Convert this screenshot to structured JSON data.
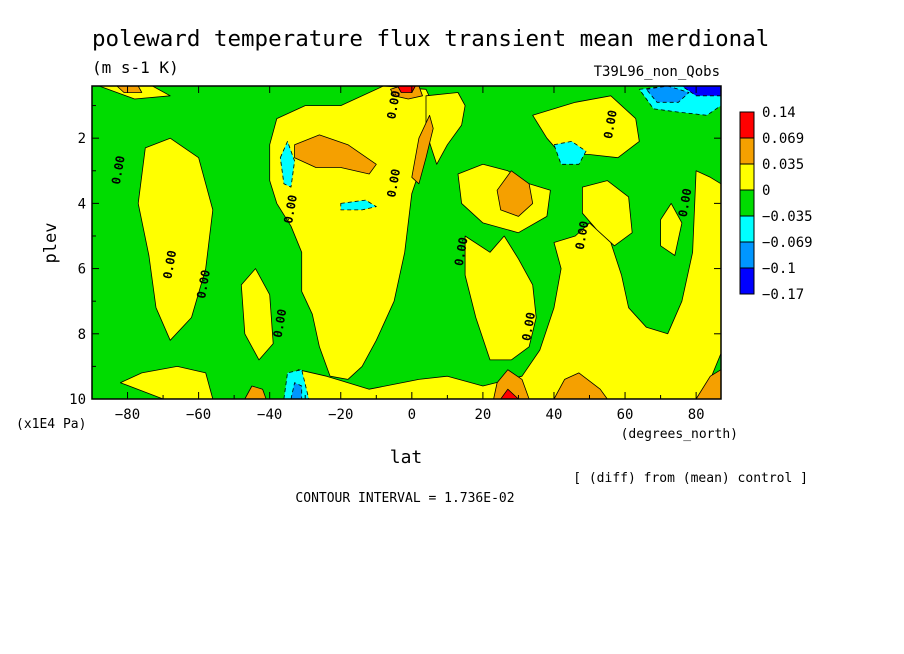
{
  "chart_data": {
    "type": "heatmap",
    "title": "poleward temperature flux transient mean merdional",
    "units": "(m s-1 K)",
    "run_label": "T39L96_non_Qobs",
    "xlabel": "lat",
    "xunits": "(degrees_north)",
    "ylabel": "plev",
    "yunits": "(x1E4 Pa)",
    "xlim": [
      -90,
      87
    ],
    "ylim": [
      10,
      0.4
    ],
    "x_ticks": [
      -80,
      -60,
      -40,
      -20,
      0,
      20,
      40,
      60,
      80
    ],
    "y_ticks": [
      2,
      4,
      6,
      8,
      10
    ],
    "colorbar": {
      "levels": [
        "0.14",
        "0.069",
        "0.035",
        "0",
        "-0.035",
        "-0.069",
        "-0.1",
        "-0.17"
      ],
      "colors": [
        "#ff0000",
        "#f5a000",
        "#ffff00",
        "#00dc00",
        "#00ffff",
        "#0096ff",
        "#0000ff"
      ]
    },
    "contour_label": "0.00",
    "footnote": "[ (diff) from (mean) control ]",
    "contour_interval": "CONTOUR INTERVAL = 1.736E-02",
    "regions": [
      {
        "level": "0.035",
        "points": [
          [
            -82,
            9.5
          ],
          [
            -70,
            10
          ],
          [
            -56,
            10
          ],
          [
            -58,
            9.2
          ],
          [
            -66,
            9.0
          ],
          [
            -76,
            9.2
          ]
        ]
      },
      {
        "level": "0.035",
        "points": [
          [
            -75,
            2.3
          ],
          [
            -68,
            2.0
          ],
          [
            -60,
            2.6
          ],
          [
            -56,
            4.2
          ],
          [
            -58,
            6.0
          ],
          [
            -62,
            7.5
          ],
          [
            -68,
            8.2
          ],
          [
            -72,
            7.2
          ],
          [
            -74,
            5.6
          ],
          [
            -77,
            4.0
          ]
        ]
      },
      {
        "level": "0.035",
        "points": [
          [
            -48,
            6.5
          ],
          [
            -44,
            6.0
          ],
          [
            -40,
            6.8
          ],
          [
            -39,
            8.3
          ],
          [
            -43,
            8.8
          ],
          [
            -47,
            8.0
          ]
        ]
      },
      {
        "level": "0.035",
        "points": [
          [
            -38,
            1.4
          ],
          [
            -30,
            1.0
          ],
          [
            -20,
            1.0
          ],
          [
            -8,
            0.4
          ],
          [
            4,
            0.5
          ],
          [
            7,
            1.2
          ],
          [
            4,
            2.4
          ],
          [
            0,
            3.7
          ],
          [
            -2,
            5.5
          ],
          [
            -5,
            7.0
          ],
          [
            -10,
            8.2
          ],
          [
            -14,
            9.0
          ],
          [
            -18,
            9.4
          ],
          [
            -23,
            9.3
          ],
          [
            -26,
            8.4
          ],
          [
            -28,
            7.4
          ],
          [
            -31,
            6.7
          ],
          [
            -31,
            5.5
          ],
          [
            -34,
            4.7
          ],
          [
            -38,
            4.0
          ],
          [
            -40,
            3.3
          ],
          [
            -40,
            2.2
          ]
        ]
      },
      {
        "level": "0.035",
        "points": [
          [
            4,
            0.7
          ],
          [
            13,
            0.6
          ],
          [
            15,
            1.0
          ],
          [
            14,
            1.6
          ],
          [
            10,
            2.2
          ],
          [
            7,
            2.8
          ],
          [
            4,
            1.8
          ]
        ]
      },
      {
        "level": "0.035",
        "points": [
          [
            -32,
            9.1
          ],
          [
            -24,
            9.3
          ],
          [
            -12,
            9.7
          ],
          [
            2,
            9.4
          ],
          [
            10,
            9.3
          ],
          [
            20,
            9.6
          ],
          [
            31,
            9.3
          ],
          [
            36,
            8.5
          ],
          [
            40,
            7.2
          ],
          [
            42,
            6.0
          ],
          [
            40,
            5.2
          ],
          [
            46,
            5.0
          ],
          [
            50,
            4.6
          ],
          [
            56,
            5.2
          ],
          [
            59,
            6.2
          ],
          [
            61,
            7.2
          ],
          [
            66,
            7.8
          ],
          [
            72,
            8.0
          ],
          [
            76,
            7.0
          ],
          [
            79,
            5.5
          ],
          [
            80,
            3.0
          ],
          [
            84,
            3.2
          ],
          [
            87,
            3.4
          ],
          [
            87,
            8.6
          ],
          [
            84,
            9.4
          ],
          [
            80,
            10
          ],
          [
            -32,
            10
          ]
        ]
      },
      {
        "level": "0.035",
        "points": [
          [
            15,
            5.0
          ],
          [
            22,
            5.5
          ],
          [
            26,
            5.0
          ],
          [
            30,
            5.7
          ],
          [
            34,
            6.5
          ],
          [
            35,
            7.5
          ],
          [
            33,
            8.4
          ],
          [
            28,
            8.8
          ],
          [
            22,
            8.8
          ],
          [
            18,
            7.5
          ],
          [
            15,
            6.2
          ]
        ]
      },
      {
        "level": "0.035",
        "points": [
          [
            13,
            3.1
          ],
          [
            20,
            2.8
          ],
          [
            27,
            3.0
          ],
          [
            33,
            3.4
          ],
          [
            39,
            3.6
          ],
          [
            38,
            4.4
          ],
          [
            30,
            4.9
          ],
          [
            20,
            4.6
          ],
          [
            14,
            4.0
          ]
        ]
      },
      {
        "level": "0.035",
        "points": [
          [
            34,
            1.3
          ],
          [
            46,
            0.9
          ],
          [
            56,
            0.7
          ],
          [
            63,
            1.4
          ],
          [
            64,
            2.1
          ],
          [
            58,
            2.6
          ],
          [
            50,
            2.5
          ],
          [
            42,
            2.5
          ],
          [
            38,
            2.0
          ]
        ]
      },
      {
        "level": "0.035",
        "points": [
          [
            48,
            3.5
          ],
          [
            55,
            3.3
          ],
          [
            61,
            3.8
          ],
          [
            62,
            4.9
          ],
          [
            57,
            5.3
          ],
          [
            52,
            4.8
          ],
          [
            48,
            4.3
          ]
        ]
      },
      {
        "level": "0.035",
        "points": [
          [
            70,
            4.5
          ],
          [
            73,
            4.0
          ],
          [
            76,
            4.6
          ],
          [
            74,
            5.6
          ],
          [
            70,
            5.3
          ]
        ]
      },
      {
        "level": "0.035",
        "points": [
          [
            -88,
            0.4
          ],
          [
            -73,
            0.4
          ],
          [
            -68,
            0.7
          ],
          [
            -78,
            0.8
          ]
        ]
      },
      {
        "level": "0.069",
        "points": [
          [
            -33,
            2.2
          ],
          [
            -26,
            1.9
          ],
          [
            -18,
            2.2
          ],
          [
            -10,
            2.8
          ],
          [
            -12,
            3.1
          ],
          [
            -20,
            2.9
          ],
          [
            -27,
            2.9
          ],
          [
            -33,
            2.6
          ]
        ]
      },
      {
        "level": "0.069",
        "points": [
          [
            0,
            3.2
          ],
          [
            2,
            2.0
          ],
          [
            5,
            1.3
          ],
          [
            6,
            1.7
          ],
          [
            4,
            2.6
          ],
          [
            2,
            3.4
          ]
        ]
      },
      {
        "level": "0.069",
        "points": [
          [
            24,
            3.6
          ],
          [
            28,
            3.0
          ],
          [
            33,
            3.4
          ],
          [
            34,
            4.0
          ],
          [
            30,
            4.4
          ],
          [
            25,
            4.2
          ]
        ]
      },
      {
        "level": "0.069",
        "points": [
          [
            -6,
            0.5
          ],
          [
            -3,
            0.4
          ],
          [
            2,
            0.4
          ],
          [
            3,
            0.7
          ],
          [
            -1,
            0.8
          ],
          [
            -5,
            0.7
          ]
        ]
      },
      {
        "level": "0.069",
        "points": [
          [
            23,
            10
          ],
          [
            24,
            9.5
          ],
          [
            27,
            9.1
          ],
          [
            31,
            9.4
          ],
          [
            33,
            10
          ]
        ]
      },
      {
        "level": "0.069",
        "points": [
          [
            40,
            10
          ],
          [
            43,
            9.4
          ],
          [
            47,
            9.2
          ],
          [
            53,
            9.7
          ],
          [
            55,
            10
          ]
        ]
      },
      {
        "level": "0.069",
        "points": [
          [
            -47,
            10
          ],
          [
            -45,
            9.6
          ],
          [
            -42,
            9.7
          ],
          [
            -41,
            10
          ]
        ]
      },
      {
        "level": "0.069",
        "points": [
          [
            -83,
            0.4
          ],
          [
            -77,
            0.4
          ],
          [
            -76,
            0.6
          ],
          [
            -81,
            0.6
          ]
        ]
      },
      {
        "level": "0.069",
        "points": [
          [
            80,
            10
          ],
          [
            84,
            9.3
          ],
          [
            87,
            9.1
          ],
          [
            87,
            10
          ]
        ]
      },
      {
        "level": "0.14",
        "points": [
          [
            25,
            10
          ],
          [
            27,
            9.7
          ],
          [
            30,
            10
          ]
        ]
      },
      {
        "level": "0.14",
        "points": [
          [
            -4,
            0.4
          ],
          [
            1,
            0.4
          ],
          [
            0,
            0.6
          ],
          [
            -3,
            0.6
          ]
        ]
      },
      {
        "level": "-0.035",
        "points": [
          [
            -20,
            4.0
          ],
          [
            -13,
            3.9
          ],
          [
            -10,
            4.1
          ],
          [
            -14,
            4.2
          ],
          [
            -20,
            4.2
          ]
        ]
      },
      {
        "level": "-0.035",
        "points": [
          [
            -37,
            2.6
          ],
          [
            -35,
            2.1
          ],
          [
            -33,
            2.7
          ],
          [
            -34,
            3.5
          ],
          [
            -36,
            3.4
          ]
        ]
      },
      {
        "level": "-0.035",
        "points": [
          [
            -36,
            10
          ],
          [
            -35,
            9.2
          ],
          [
            -31,
            9.1
          ],
          [
            -29,
            10
          ]
        ]
      },
      {
        "level": "-0.035",
        "points": [
          [
            40,
            2.2
          ],
          [
            45,
            2.1
          ],
          [
            49,
            2.4
          ],
          [
            47,
            2.8
          ],
          [
            42,
            2.8
          ]
        ]
      },
      {
        "level": "-0.035",
        "points": [
          [
            64,
            0.5
          ],
          [
            72,
            0.4
          ],
          [
            87,
            0.4
          ],
          [
            87,
            1.0
          ],
          [
            83,
            1.3
          ],
          [
            75,
            1.2
          ],
          [
            68,
            1.1
          ]
        ]
      },
      {
        "level": "-0.069",
        "points": [
          [
            66,
            0.5
          ],
          [
            72,
            0.4
          ],
          [
            78,
            0.6
          ],
          [
            75,
            0.9
          ],
          [
            69,
            0.9
          ]
        ]
      },
      {
        "level": "-0.069",
        "points": [
          [
            -34,
            10
          ],
          [
            -33,
            9.5
          ],
          [
            -31,
            9.6
          ],
          [
            -31,
            10
          ]
        ]
      },
      {
        "level": "-0.1",
        "points": [
          [
            76,
            0.4
          ],
          [
            87,
            0.4
          ],
          [
            87,
            0.7
          ],
          [
            80,
            0.7
          ]
        ]
      }
    ]
  }
}
